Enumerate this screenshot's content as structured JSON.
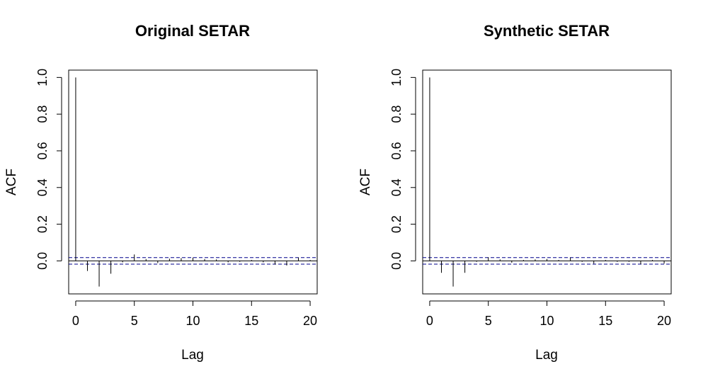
{
  "chart_data": [
    {
      "type": "bar",
      "title": "Original SETAR",
      "xlabel": "Lag",
      "ylabel": "ACF",
      "xlim": [
        -0.6,
        20.6
      ],
      "ylim": [
        -0.18,
        1.04
      ],
      "x_ticks": [
        0,
        5,
        10,
        15,
        20
      ],
      "y_ticks": [
        0.0,
        0.2,
        0.4,
        0.6,
        0.8,
        1.0
      ],
      "y_tick_labels": [
        "0.0",
        "0.2",
        "0.4",
        "0.6",
        "0.8",
        "1.0"
      ],
      "confidence_band": 0.018,
      "grid": false,
      "colors": {
        "lines": "#000000",
        "confidence": "#00008b"
      },
      "lags": [
        0,
        1,
        2,
        3,
        4,
        5,
        6,
        7,
        8,
        9,
        10,
        11,
        12,
        13,
        14,
        15,
        16,
        17,
        18,
        19,
        20
      ],
      "values": [
        1.0,
        -0.055,
        -0.14,
        -0.07,
        -0.008,
        0.035,
        0.01,
        -0.012,
        0.012,
        0.015,
        0.018,
        0.01,
        0.008,
        -0.008,
        -0.005,
        0.005,
        -0.008,
        -0.02,
        -0.025,
        0.018,
        0.005
      ]
    },
    {
      "type": "bar",
      "title": "Synthetic SETAR",
      "xlabel": "Lag",
      "ylabel": "ACF",
      "xlim": [
        -0.6,
        20.6
      ],
      "ylim": [
        -0.18,
        1.04
      ],
      "x_ticks": [
        0,
        5,
        10,
        15,
        20
      ],
      "y_ticks": [
        0.0,
        0.2,
        0.4,
        0.6,
        0.8,
        1.0
      ],
      "y_tick_labels": [
        "0.0",
        "0.2",
        "0.4",
        "0.6",
        "0.8",
        "1.0"
      ],
      "confidence_band": 0.018,
      "grid": false,
      "colors": {
        "lines": "#000000",
        "confidence": "#00008b"
      },
      "lags": [
        0,
        1,
        2,
        3,
        4,
        5,
        6,
        7,
        8,
        9,
        10,
        11,
        12,
        13,
        14,
        15,
        16,
        17,
        18,
        19,
        20
      ],
      "values": [
        1.0,
        -0.065,
        -0.14,
        -0.065,
        -0.005,
        0.02,
        0.008,
        -0.01,
        0.005,
        0.008,
        0.01,
        0.005,
        0.018,
        -0.005,
        -0.015,
        0.005,
        -0.005,
        -0.005,
        -0.018,
        0.005,
        -0.015
      ]
    }
  ]
}
